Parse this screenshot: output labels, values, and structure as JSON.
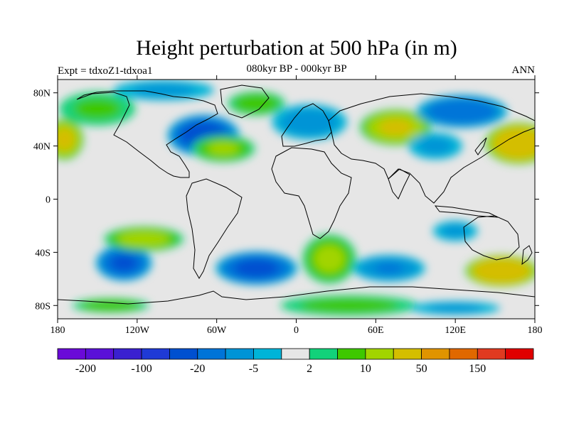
{
  "title": "Height perturbation at 500 hPa (in m)",
  "subtitle": "080kyr BP - 000kyr BP",
  "left_label": "Expt = tdxoZ1-tdxoa1",
  "right_label": "ANN",
  "map": {
    "projection": "cylindrical-equidistant",
    "lon_range": [
      -180,
      180
    ],
    "lat_range": [
      -90,
      90
    ],
    "background_color": "#e6e6e6",
    "lon_ticks": [
      {
        "value": -180,
        "label": "180"
      },
      {
        "value": -120,
        "label": "120W"
      },
      {
        "value": -60,
        "label": "60W"
      },
      {
        "value": 0,
        "label": "0"
      },
      {
        "value": 60,
        "label": "60E"
      },
      {
        "value": 120,
        "label": "120E"
      },
      {
        "value": 180,
        "label": "180"
      }
    ],
    "lat_ticks": [
      {
        "value": 80,
        "label": "80N"
      },
      {
        "value": 40,
        "label": "40N"
      },
      {
        "value": 0,
        "label": "0"
      },
      {
        "value": -40,
        "label": "40S"
      },
      {
        "value": -80,
        "label": "80S"
      }
    ],
    "anomalies": [
      {
        "lon": -70,
        "lat": 48,
        "rx": 28,
        "ry": 16,
        "value": -28
      },
      {
        "lon": -30,
        "lat": 72,
        "rx": 24,
        "ry": 10,
        "value": 9
      },
      {
        "lon": -55,
        "lat": 38,
        "rx": 26,
        "ry": 11,
        "value": 11
      },
      {
        "lon": 10,
        "lat": 58,
        "rx": 32,
        "ry": 15,
        "value": -8
      },
      {
        "lon": 75,
        "lat": 54,
        "rx": 28,
        "ry": 14,
        "value": 22
      },
      {
        "lon": 125,
        "lat": 66,
        "rx": 36,
        "ry": 13,
        "value": -18
      },
      {
        "lon": 168,
        "lat": 42,
        "rx": 26,
        "ry": 16,
        "value": 40
      },
      {
        "lon": -175,
        "lat": 45,
        "rx": 15,
        "ry": 16,
        "value": 25
      },
      {
        "lon": 105,
        "lat": 40,
        "rx": 24,
        "ry": 12,
        "value": -6
      },
      {
        "lon": -150,
        "lat": 68,
        "rx": 34,
        "ry": 15,
        "value": 6
      },
      {
        "lon": -100,
        "lat": 82,
        "rx": 45,
        "ry": 9,
        "value": -6
      },
      {
        "lon": -130,
        "lat": -48,
        "rx": 22,
        "ry": 14,
        "value": -22
      },
      {
        "lon": -115,
        "lat": -30,
        "rx": 32,
        "ry": 10,
        "value": 14
      },
      {
        "lon": -30,
        "lat": -52,
        "rx": 32,
        "ry": 13,
        "value": -24
      },
      {
        "lon": 25,
        "lat": -45,
        "rx": 22,
        "ry": 20,
        "value": 12
      },
      {
        "lon": 70,
        "lat": -52,
        "rx": 30,
        "ry": 11,
        "value": -10
      },
      {
        "lon": 120,
        "lat": -24,
        "rx": 20,
        "ry": 9,
        "value": -6
      },
      {
        "lon": 155,
        "lat": -54,
        "rx": 28,
        "ry": 12,
        "value": 45
      },
      {
        "lon": -140,
        "lat": -80,
        "rx": 32,
        "ry": 6,
        "value": 9
      },
      {
        "lon": 40,
        "lat": -80,
        "rx": 60,
        "ry": 9,
        "value": 7
      },
      {
        "lon": 120,
        "lat": -82,
        "rx": 40,
        "ry": 6,
        "value": -6
      }
    ],
    "levels": [
      -200,
      -150,
      -100,
      -50,
      -20,
      -10,
      -5,
      -2,
      2,
      5,
      10,
      20,
      50,
      100,
      150,
      200
    ]
  },
  "colorbar": {
    "colors": [
      "#6a0ad8",
      "#5a10d8",
      "#3a20d0",
      "#1f3ad6",
      "#0050d0",
      "#0074d8",
      "#0094d6",
      "#00b4d8",
      "#e6e6e6",
      "#12d27a",
      "#3ec800",
      "#a2d400",
      "#d4be00",
      "#e09400",
      "#e06800",
      "#e03a20",
      "#e00000"
    ],
    "labels": [
      {
        "boundary": 1,
        "text": "-200"
      },
      {
        "boundary": 3,
        "text": "-100"
      },
      {
        "boundary": 5,
        "text": "-20"
      },
      {
        "boundary": 7,
        "text": "-5"
      },
      {
        "boundary": 9,
        "text": "2"
      },
      {
        "boundary": 11,
        "text": "10"
      },
      {
        "boundary": 13,
        "text": "50"
      },
      {
        "boundary": 15,
        "text": "150"
      }
    ]
  }
}
